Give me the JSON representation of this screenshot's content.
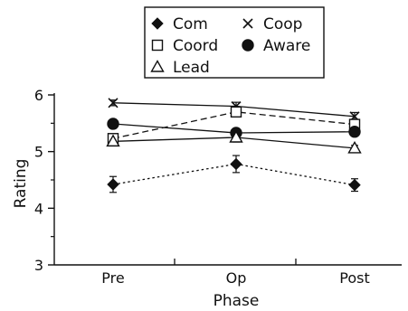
{
  "chart_data": {
    "type": "line",
    "xlabel": "Phase",
    "ylabel": "Rating",
    "categories": [
      "Pre",
      "Op",
      "Post"
    ],
    "ylim": [
      3,
      6
    ],
    "yticks": [
      3,
      4,
      5,
      6
    ],
    "legend_position": "top",
    "series": [
      {
        "name": "Com",
        "marker": "diamond",
        "line": "dotted",
        "values": [
          4.42,
          4.78,
          4.41
        ],
        "errors": [
          0.14,
          0.15,
          0.11
        ]
      },
      {
        "name": "Coop",
        "marker": "cross",
        "line": "solid",
        "values": [
          5.86,
          5.8,
          5.62
        ],
        "errors": [
          0.05,
          0.07,
          0.07
        ]
      },
      {
        "name": "Coord",
        "marker": "square",
        "line": "dashed",
        "values": [
          5.23,
          5.7,
          5.48
        ],
        "errors": [
          0.08,
          0.07,
          0.07
        ]
      },
      {
        "name": "Aware",
        "marker": "circle",
        "line": "solid",
        "values": [
          5.49,
          5.33,
          5.35
        ],
        "errors": [
          0.06,
          0.06,
          0.07
        ]
      },
      {
        "name": "Lead",
        "marker": "triangle",
        "line": "solid",
        "values": [
          5.18,
          5.25,
          5.06
        ],
        "errors": [
          0.08,
          0.08,
          0.05
        ]
      }
    ]
  }
}
